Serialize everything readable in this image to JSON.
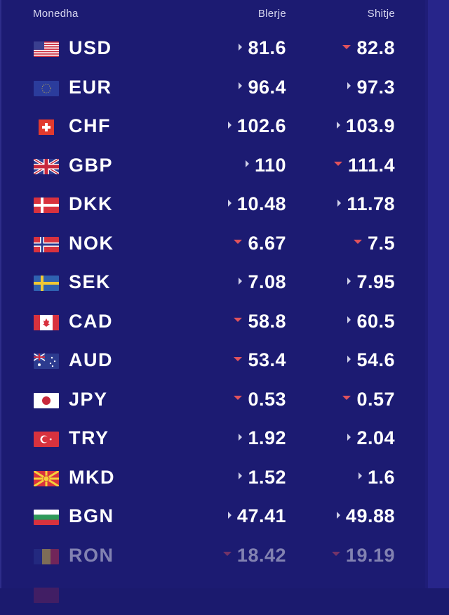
{
  "header": {
    "currency": "Monedha",
    "buy": "Blerje",
    "sell": "Shitje"
  },
  "colors": {
    "background": "#1c1b72",
    "down_arrow": "#e0525c",
    "right_arrow": "#cfd0e8"
  },
  "rates": [
    {
      "code": "USD",
      "buy": "81.6",
      "buy_trend": "right",
      "sell": "82.8",
      "sell_trend": "down",
      "flag": "us-flag-icon"
    },
    {
      "code": "EUR",
      "buy": "96.4",
      "buy_trend": "right",
      "sell": "97.3",
      "sell_trend": "right",
      "flag": "eu-flag-icon"
    },
    {
      "code": "CHF",
      "buy": "102.6",
      "buy_trend": "right",
      "sell": "103.9",
      "sell_trend": "right",
      "flag": "ch-flag-icon"
    },
    {
      "code": "GBP",
      "buy": "110",
      "buy_trend": "right",
      "sell": "111.4",
      "sell_trend": "down",
      "flag": "gb-flag-icon"
    },
    {
      "code": "DKK",
      "buy": "10.48",
      "buy_trend": "right",
      "sell": "11.78",
      "sell_trend": "right",
      "flag": "dk-flag-icon"
    },
    {
      "code": "NOK",
      "buy": "6.67",
      "buy_trend": "down",
      "sell": "7.5",
      "sell_trend": "down",
      "flag": "no-flag-icon"
    },
    {
      "code": "SEK",
      "buy": "7.08",
      "buy_trend": "right",
      "sell": "7.95",
      "sell_trend": "right",
      "flag": "se-flag-icon"
    },
    {
      "code": "CAD",
      "buy": "58.8",
      "buy_trend": "down",
      "sell": "60.5",
      "sell_trend": "right",
      "flag": "ca-flag-icon"
    },
    {
      "code": "AUD",
      "buy": "53.4",
      "buy_trend": "down",
      "sell": "54.6",
      "sell_trend": "right",
      "flag": "au-flag-icon"
    },
    {
      "code": "JPY",
      "buy": "0.53",
      "buy_trend": "down",
      "sell": "0.57",
      "sell_trend": "down",
      "flag": "jp-flag-icon"
    },
    {
      "code": "TRY",
      "buy": "1.92",
      "buy_trend": "right",
      "sell": "2.04",
      "sell_trend": "right",
      "flag": "tr-flag-icon"
    },
    {
      "code": "MKD",
      "buy": "1.52",
      "buy_trend": "right",
      "sell": "1.6",
      "sell_trend": "right",
      "flag": "mk-flag-icon"
    },
    {
      "code": "BGN",
      "buy": "47.41",
      "buy_trend": "right",
      "sell": "49.88",
      "sell_trend": "right",
      "flag": "bg-flag-icon"
    },
    {
      "code": "RON",
      "buy": "18.42",
      "buy_trend": "down",
      "sell": "19.19",
      "sell_trend": "down",
      "flag": "ro-flag-icon"
    }
  ]
}
